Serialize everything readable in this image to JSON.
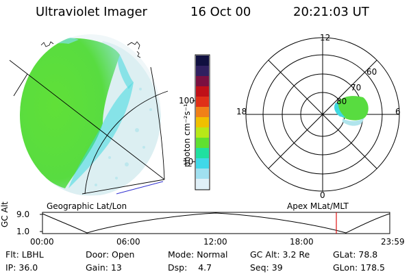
{
  "header": {
    "instrument": "Ultraviolet Imager",
    "date": "16 Oct 00",
    "time": "20:21:03 UT"
  },
  "left_panel": {
    "label": "Geographic Lat/Lon"
  },
  "colorbar": {
    "unit_label": "photon cm⁻²s⁻¹",
    "tick_labels": [
      "100",
      "10"
    ],
    "colors": [
      "#101040",
      "#302060",
      "#7a1040",
      "#c01018",
      "#e03018",
      "#f08018",
      "#f0c000",
      "#b8e818",
      "#60e030",
      "#20e0a0",
      "#40d8e8",
      "#a0e0f0",
      "#e0f0f8"
    ]
  },
  "right_panel": {
    "label": "Apex MLat/MLT",
    "mlt_labels": {
      "top": "12",
      "left": "18",
      "right": "6",
      "bottom": "0"
    },
    "lat_labels": [
      "60",
      "70",
      "80"
    ]
  },
  "timeline": {
    "y_label": "GC Alt",
    "y_ticks": [
      "9.0",
      "1.0"
    ],
    "x_ticks": [
      "00:00",
      "06:00",
      "12:00",
      "18:00",
      "23:59"
    ],
    "current_marker_color": "#e01010"
  },
  "status": {
    "row1": [
      {
        "key": "Flt:",
        "value": "LBHL"
      },
      {
        "key": "Door:",
        "value": "Open"
      },
      {
        "key": "Mode:",
        "value": "Normal"
      },
      {
        "key": "GC Alt:",
        "value": "3.2 Re"
      },
      {
        "key": "GLat:",
        "value": "78.8"
      }
    ],
    "row2": [
      {
        "key": "IP:",
        "value": "36.0"
      },
      {
        "key": "Gain:",
        "value": "13"
      },
      {
        "key": "Dsp:",
        "value": "4.7"
      },
      {
        "key": "Seq:",
        "value": "39"
      },
      {
        "key": "GLon:",
        "value": "178.5"
      }
    ]
  }
}
